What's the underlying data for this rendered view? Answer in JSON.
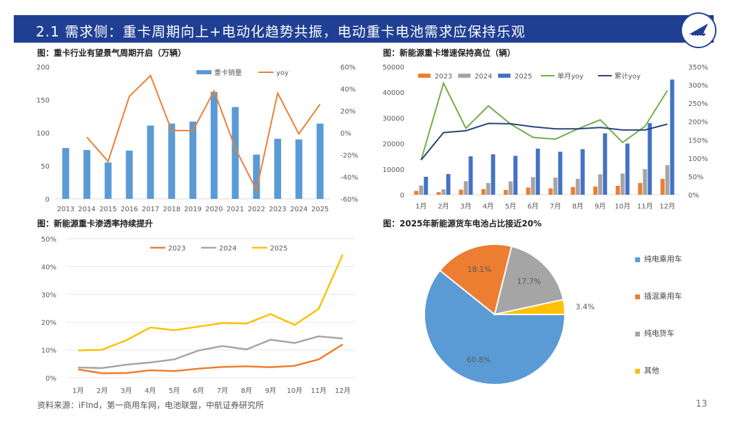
{
  "header": {
    "title": "2.1 需求侧：重卡周期向上+电动化趋势共振，电动重卡电池需求应保持乐观",
    "logo_text": "AVIC"
  },
  "footer": {
    "source": "资料来源：iFInd，第一商用车网，电池联盟，中航证券研究所",
    "page": "13"
  },
  "colors": {
    "blue": "#5b9bd5",
    "orange": "#ed7d31",
    "gray": "#a5a5a5",
    "yellow": "#ffc000",
    "dark_blue": "#4472c4",
    "green": "#70ad47",
    "navy": "#264478"
  },
  "chart_data": [
    {
      "id": "chart1",
      "type": "bar",
      "title": "图：重卡行业有望景气周期开启（万辆）",
      "categories": [
        "2013",
        "2014",
        "2015",
        "2016",
        "2017",
        "2018",
        "2019",
        "2020",
        "2021",
        "2022",
        "2023",
        "2024",
        "2025"
      ],
      "series": [
        {
          "name": "重卡销量",
          "kind": "bar",
          "axis": "left",
          "values": [
            77,
            74,
            55,
            73,
            111,
            114,
            117,
            162,
            139,
            67,
            91,
            90,
            114
          ]
        },
        {
          "name": "yoy",
          "kind": "line",
          "axis": "right",
          "values": [
            null,
            -4,
            -26,
            33,
            52,
            2,
            2,
            38,
            -14,
            -52,
            36,
            -1,
            26
          ]
        }
      ],
      "yleft": {
        "min": 0,
        "max": 200,
        "ticks": [
          "0",
          "50",
          "100",
          "150",
          "200"
        ]
      },
      "yright": {
        "min": -60,
        "max": 60,
        "ticks": [
          "-60%",
          "-40%",
          "-20%",
          "0%",
          "20%",
          "40%",
          "60%"
        ]
      }
    },
    {
      "id": "chart2",
      "type": "bar",
      "title": "图：新能源重卡增速保持高位（辆）",
      "categories": [
        "1月",
        "2月",
        "3月",
        "4月",
        "5月",
        "6月",
        "7月",
        "8月",
        "9月",
        "10月",
        "11月",
        "12月"
      ],
      "series": [
        {
          "name": "2023",
          "kind": "bar",
          "axis": "left",
          "values": [
            1500,
            1000,
            2000,
            2200,
            1900,
            2800,
            2500,
            3000,
            3200,
            3500,
            4600,
            6200
          ]
        },
        {
          "name": "2024",
          "kind": "bar",
          "axis": "left",
          "values": [
            3600,
            2100,
            5300,
            4600,
            5200,
            6900,
            6700,
            6200,
            8000,
            8300,
            10000,
            11600
          ]
        },
        {
          "name": "2025",
          "kind": "bar",
          "axis": "left",
          "values": [
            7000,
            8100,
            15000,
            15800,
            15200,
            18000,
            16800,
            17800,
            24000,
            20000,
            28000,
            45000
          ]
        },
        {
          "name": "单月yoy",
          "kind": "line",
          "axis": "right",
          "values": [
            95,
            305,
            182,
            243,
            193,
            157,
            152,
            180,
            205,
            143,
            187,
            285
          ]
        },
        {
          "name": "累计yoy",
          "kind": "line",
          "axis": "right",
          "values": [
            95,
            170,
            175,
            195,
            194,
            186,
            180,
            180,
            184,
            177,
            177,
            193
          ]
        }
      ],
      "yleft": {
        "min": 0,
        "max": 50000,
        "ticks": [
          "0",
          "10000",
          "20000",
          "30000",
          "40000",
          "50000"
        ]
      },
      "yright": {
        "min": 0,
        "max": 350,
        "ticks": [
          "0%",
          "50%",
          "100%",
          "150%",
          "200%",
          "250%",
          "300%",
          "350%"
        ]
      }
    },
    {
      "id": "chart3",
      "type": "line",
      "title": "图：新能源重卡渗透率持续提升",
      "categories": [
        "1月",
        "2月",
        "3月",
        "4月",
        "5月",
        "6月",
        "7月",
        "8月",
        "9月",
        "10月",
        "11月",
        "12月"
      ],
      "series": [
        {
          "name": "2023",
          "values": [
            3.0,
            1.6,
            1.7,
            2.7,
            2.4,
            3.3,
            3.9,
            4.1,
            3.8,
            4.3,
            6.6,
            12.0
          ]
        },
        {
          "name": "2024",
          "values": [
            3.7,
            3.5,
            4.7,
            5.5,
            6.6,
            9.8,
            11.4,
            10.2,
            13.7,
            12.5,
            14.9,
            14.1
          ]
        },
        {
          "name": "2025",
          "values": [
            9.8,
            10.1,
            13.5,
            18.1,
            17.1,
            18.4,
            19.7,
            19.5,
            22.9,
            19.0,
            24.8,
            44.3
          ]
        }
      ],
      "ylim": [
        0,
        50
      ],
      "yticks": [
        "0%",
        "10%",
        "20%",
        "30%",
        "40%",
        "50%"
      ]
    },
    {
      "id": "chart4",
      "type": "pie",
      "title": "图：2025年新能源货车电池占比接近20%",
      "slices": [
        {
          "name": "纯电乘用车",
          "value": 60.8,
          "label": "60.8%"
        },
        {
          "name": "插混乘用车",
          "value": 18.1,
          "label": "18.1%"
        },
        {
          "name": "纯电货车",
          "value": 17.7,
          "label": "17.7%"
        },
        {
          "name": "其他",
          "value": 3.4,
          "label": "3.4%"
        }
      ]
    }
  ]
}
